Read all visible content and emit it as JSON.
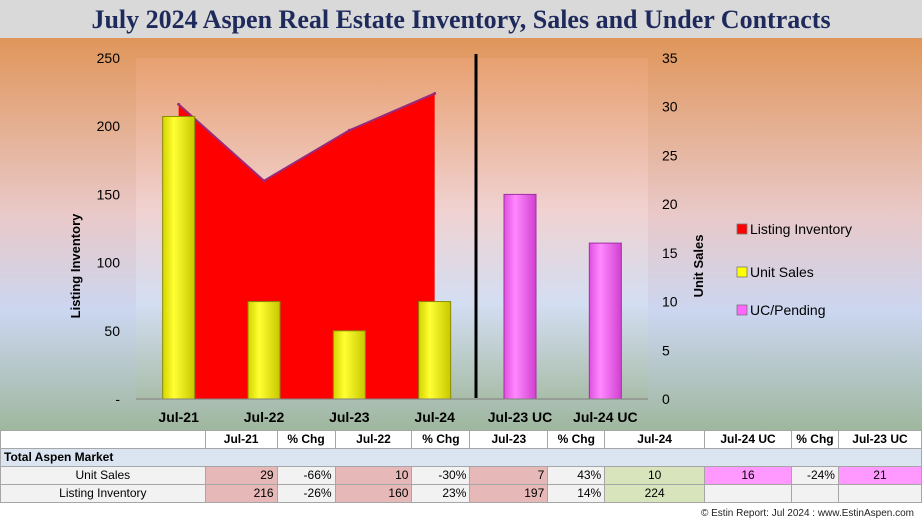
{
  "title": "July 2024 Aspen Real Estate Inventory, Sales and Under Contracts",
  "colors": {
    "inventory": "#ff0000",
    "sales": "#ffff00",
    "pending": "#ff66ff",
    "divider": "#000000"
  },
  "chart_data": {
    "type": "bar",
    "categories": [
      "Jul-21",
      "Jul-22",
      "Jul-23",
      "Jul-24",
      "Jul-23 UC",
      "Jul-24 UC"
    ],
    "series": [
      {
        "name": "Listing Inventory",
        "kind": "area",
        "axis": "left",
        "values": [
          216,
          160,
          197,
          224,
          null,
          null
        ]
      },
      {
        "name": "Unit Sales",
        "kind": "bar",
        "axis": "right",
        "values": [
          29,
          10,
          7,
          10,
          null,
          null
        ]
      },
      {
        "name": "UC/Pending",
        "kind": "bar",
        "axis": "right",
        "values": [
          null,
          null,
          null,
          null,
          21,
          16
        ]
      }
    ],
    "ylabel": "Listing Inventory",
    "y2label": "Unit Sales",
    "ylim": [
      0,
      250
    ],
    "y2lim": [
      0,
      35
    ],
    "yticks": [
      "-",
      "50",
      "100",
      "150",
      "200",
      "250"
    ],
    "y2ticks": [
      "0",
      "5",
      "10",
      "15",
      "20",
      "25",
      "30",
      "35"
    ],
    "legend_placement": "right",
    "grid": false
  },
  "table": {
    "headers": [
      "",
      "Jul-21",
      "% Chg",
      "Jul-22",
      "% Chg",
      "Jul-23",
      "% Chg",
      "Jul-24",
      "Jul-24 UC",
      "% Chg",
      "Jul-23 UC"
    ],
    "section": "Total Aspen Market",
    "rows": [
      {
        "label": "Unit Sales",
        "cells": [
          "29",
          "-66%",
          "10",
          "-30%",
          "7",
          "43%",
          "10",
          "16",
          "-24%",
          "21"
        ]
      },
      {
        "label": "Listing Inventory",
        "cells": [
          "216",
          "-26%",
          "160",
          "23%",
          "197",
          "14%",
          "224",
          "",
          "",
          ""
        ]
      }
    ]
  },
  "footer": "© Estin Report: Jul 2024 : www.EstinAspen.com"
}
